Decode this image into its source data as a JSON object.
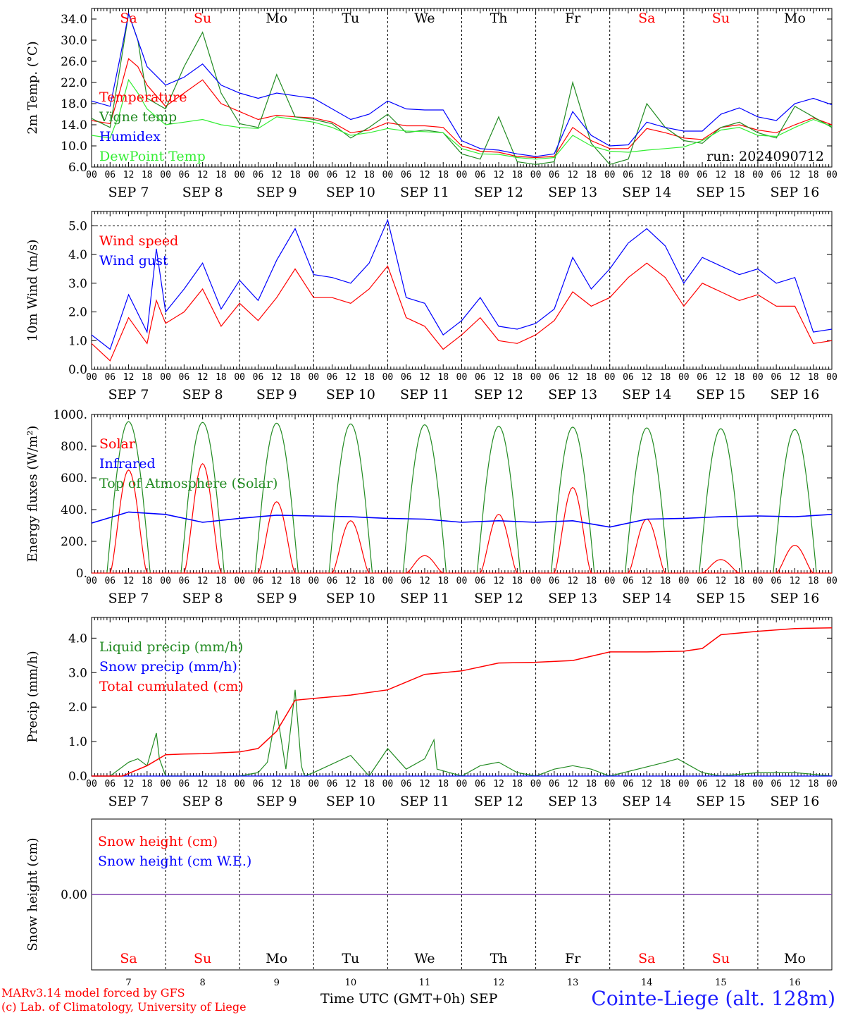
{
  "run_label": "run: 2024090712",
  "footer": {
    "model": "MARv3.14 model forced by GFS",
    "lab": "(c) Lab. of Climatology, University of Liege",
    "xlabel": "Time UTC (GMT+0h) SEP",
    "station": "Cointe-Liege (alt. 128m)"
  },
  "days": {
    "weekday_labels": [
      "Sa",
      "Su",
      "Mo",
      "Tu",
      "We",
      "Th",
      "Fr",
      "Sa",
      "Su",
      "Mo"
    ],
    "weekend_flags": [
      true,
      true,
      false,
      false,
      false,
      false,
      false,
      true,
      true,
      false
    ],
    "date_labels": [
      "SEP  7",
      "SEP  8",
      "SEP  9",
      "SEP 10",
      "SEP 11",
      "SEP 12",
      "SEP 13",
      "SEP 14",
      "SEP 15",
      "SEP 16"
    ],
    "day_numbers": [
      "7",
      "8",
      "9",
      "10",
      "11",
      "12",
      "13",
      "14",
      "15",
      "16"
    ],
    "hour_ticks": [
      "00",
      "06",
      "12",
      "18"
    ],
    "end_tick": "00"
  },
  "colors": {
    "red": "#ff0000",
    "green": "#228b22",
    "blue": "#0000ff",
    "lightgreen": "#33ee33",
    "purple": "#7f3faf",
    "weekday": "#000000"
  },
  "chart_data": [
    {
      "type": "line",
      "ylabel": "2m Temp. (°C)",
      "ylim": [
        6,
        36
      ],
      "yticks": [
        "6.0",
        "10.0",
        "14.0",
        "18.0",
        "22.0",
        "26.0",
        "30.0",
        "34.0"
      ],
      "x_hours": [
        0,
        6,
        9,
        12,
        15,
        18,
        24,
        30,
        36,
        42,
        48,
        54,
        60,
        66,
        72,
        78,
        84,
        90,
        96,
        102,
        108,
        114,
        120,
        126,
        132,
        138,
        144,
        150,
        156,
        162,
        168,
        174,
        180,
        186,
        192,
        198,
        204,
        210,
        216,
        222,
        228,
        234,
        240
      ],
      "series": [
        {
          "name": "Temperature",
          "color": "red",
          "values": [
            14.8,
            14.2,
            20,
            26.5,
            25,
            21.5,
            17.5,
            20,
            22.5,
            18,
            16.5,
            15,
            15.8,
            15.5,
            15.3,
            14.5,
            12.5,
            13,
            14.4,
            13.8,
            13.8,
            13.5,
            10,
            9,
            8.8,
            8,
            7.8,
            8,
            13.5,
            11,
            9.5,
            9.5,
            13.3,
            12.5,
            11.5,
            11.2,
            13.5,
            14,
            13,
            12.5,
            14,
            15.3,
            14
          ]
        },
        {
          "name": "Vigne temp",
          "color": "green",
          "values": [
            15.2,
            13.5,
            24,
            35,
            30,
            19,
            17,
            25,
            31.5,
            20,
            14.2,
            13.5,
            23.5,
            15.5,
            15,
            14.2,
            11.5,
            13.5,
            16,
            12.5,
            13,
            12.5,
            8.5,
            7.5,
            15.5,
            7,
            6.5,
            7,
            22,
            10.5,
            6.5,
            7.5,
            18,
            13.5,
            11,
            10.5,
            13.5,
            14.5,
            12.5,
            11.5,
            17.5,
            15.5,
            13.5
          ]
        },
        {
          "name": "Humidex",
          "color": "blue",
          "values": [
            18.5,
            17.5,
            26,
            35,
            30,
            25,
            21.5,
            23,
            25.5,
            21.5,
            20,
            19,
            20,
            19.5,
            19,
            17,
            15,
            16,
            18.5,
            17,
            16.8,
            16.8,
            11,
            9.5,
            9.2,
            8.5,
            8,
            8.5,
            16.5,
            12,
            10,
            10.2,
            14.5,
            13.5,
            12.8,
            12.8,
            16,
            17.2,
            15.5,
            14.8,
            18,
            19,
            17.8
          ]
        },
        {
          "name": "DewPoint Temp",
          "color": "lightgreen",
          "values": [
            12,
            11.5,
            16,
            22.5,
            20,
            17,
            14,
            14.5,
            15,
            14,
            13.5,
            13.3,
            15.5,
            15,
            14.5,
            13.5,
            12,
            12.5,
            13.3,
            12.8,
            12.7,
            12.5,
            9.5,
            8.5,
            8.4,
            7.8,
            7.5,
            7.8,
            12,
            10,
            9,
            8.8,
            9.2,
            9.5,
            9.8,
            11,
            13,
            13.5,
            12,
            11.8,
            13.5,
            15,
            13.7
          ]
        }
      ]
    },
    {
      "type": "line",
      "ylabel": "10m Wind (m/s)",
      "ylim": [
        0,
        5.5
      ],
      "yticks": [
        "0.0",
        "1.0",
        "2.0",
        "3.0",
        "4.0",
        "5.0"
      ],
      "reference_line": 5.0,
      "x_hours": [
        0,
        6,
        12,
        18,
        21,
        24,
        30,
        36,
        42,
        48,
        54,
        60,
        66,
        72,
        78,
        84,
        90,
        96,
        102,
        108,
        114,
        120,
        126,
        132,
        138,
        144,
        150,
        156,
        162,
        168,
        174,
        180,
        186,
        192,
        198,
        204,
        210,
        216,
        222,
        228,
        234,
        240
      ],
      "series": [
        {
          "name": "Wind speed",
          "color": "red",
          "values": [
            0.9,
            0.3,
            1.8,
            0.9,
            2.4,
            1.6,
            2,
            2.8,
            1.5,
            2.3,
            1.7,
            2.5,
            3.5,
            2.5,
            2.5,
            2.3,
            2.8,
            3.6,
            1.8,
            1.5,
            0.7,
            1.2,
            1.8,
            1,
            0.9,
            1.2,
            1.7,
            2.7,
            2.2,
            2.5,
            3.2,
            3.7,
            3.2,
            2.2,
            3,
            2.7,
            2.4,
            2.6,
            2.2,
            2.2,
            0.9,
            1
          ]
        },
        {
          "name": "Wind gust",
          "color": "blue",
          "values": [
            1.2,
            0.7,
            2.6,
            1.3,
            4.2,
            2,
            2.8,
            3.7,
            2.1,
            3.1,
            2.4,
            3.8,
            4.9,
            3.3,
            3.2,
            3,
            3.7,
            5.2,
            2.5,
            2.3,
            1.2,
            1.7,
            2.5,
            1.5,
            1.4,
            1.6,
            2.1,
            3.9,
            2.8,
            3.5,
            4.4,
            4.9,
            4.3,
            3,
            3.9,
            3.6,
            3.3,
            3.5,
            3,
            3.2,
            1.3,
            1.4
          ]
        }
      ]
    },
    {
      "type": "line",
      "ylabel": "Energy fluxes (W/m²)",
      "ylim": [
        0,
        1000
      ],
      "yticks": [
        "0.",
        "200.",
        "400.",
        "600.",
        "800.",
        "1000."
      ],
      "series": [
        {
          "name": "Solar",
          "color": "red",
          "peaks": [
            650,
            690,
            450,
            330,
            110,
            370,
            540,
            340,
            85,
            175
          ]
        },
        {
          "name": "Infrared",
          "color": "blue",
          "x_hours": [
            0,
            12,
            24,
            36,
            48,
            60,
            72,
            84,
            96,
            108,
            120,
            132,
            144,
            156,
            168,
            180,
            192,
            204,
            216,
            228,
            240
          ],
          "values": [
            315,
            385,
            370,
            320,
            345,
            365,
            360,
            355,
            345,
            340,
            320,
            330,
            320,
            330,
            290,
            340,
            345,
            355,
            360,
            355,
            370
          ]
        },
        {
          "name": "Top of Atmosphere (Solar)",
          "color": "green",
          "peaks": [
            955,
            950,
            945,
            940,
            935,
            925,
            920,
            915,
            910,
            905
          ]
        }
      ]
    },
    {
      "type": "line",
      "ylabel": "Precip (mm/h)",
      "ylim": [
        0,
        4.6
      ],
      "yticks": [
        "0.0",
        "1.0",
        "2.0",
        "3.0",
        "4.0"
      ],
      "series": [
        {
          "name": "Liquid precip (mm/h)",
          "color": "green",
          "x_hours": [
            0,
            6,
            12,
            15,
            18,
            21,
            22,
            24,
            48,
            54,
            57,
            60,
            63,
            66,
            68,
            69,
            72,
            84,
            90,
            96,
            102,
            108,
            111,
            112,
            120,
            126,
            132,
            138,
            144,
            150,
            156,
            162,
            168,
            186,
            190,
            194,
            198,
            204,
            216,
            228,
            240
          ],
          "values": [
            0,
            0,
            0.4,
            0.5,
            0.3,
            1.25,
            0.5,
            0,
            0,
            0.1,
            0.4,
            1.9,
            0.2,
            2.5,
            0.3,
            0,
            0.1,
            0.6,
            0,
            0.8,
            0.2,
            0.5,
            1.05,
            0.2,
            0,
            0.3,
            0.4,
            0.1,
            0,
            0.2,
            0.3,
            0.2,
            0,
            0.4,
            0.5,
            0.3,
            0.1,
            0,
            0.1,
            0.1,
            0
          ]
        },
        {
          "name": "Snow precip (mm/h)",
          "color": "blue",
          "values": [
            0
          ]
        },
        {
          "name": "Total cumulated (cm)",
          "color": "red",
          "x_hours": [
            0,
            10,
            18,
            24,
            30,
            36,
            48,
            54,
            60,
            66,
            72,
            84,
            96,
            108,
            120,
            132,
            144,
            156,
            168,
            180,
            192,
            198,
            204,
            216,
            228,
            240
          ],
          "values": [
            0,
            0,
            0.3,
            0.62,
            0.64,
            0.65,
            0.7,
            0.8,
            1.3,
            2.2,
            2.25,
            2.35,
            2.5,
            2.95,
            3.05,
            3.28,
            3.3,
            3.35,
            3.6,
            3.6,
            3.62,
            3.7,
            4.1,
            4.2,
            4.28,
            4.3
          ]
        }
      ]
    },
    {
      "type": "line",
      "ylabel": "Snow height (cm)",
      "yticks": [
        "0.00"
      ],
      "series": [
        {
          "name": "Snow height (cm)",
          "color": "red",
          "values": [
            0
          ]
        },
        {
          "name": "Snow height (cm W.E.)",
          "color": "blue",
          "values": [
            0
          ]
        }
      ]
    }
  ]
}
